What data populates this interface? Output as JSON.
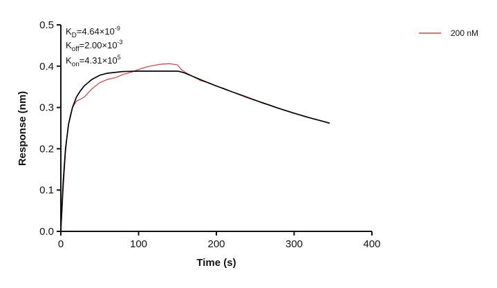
{
  "chart_data": {
    "type": "line",
    "title": "",
    "xlabel": "Time (s)",
    "ylabel": "Response (nm)",
    "xlim": [
      0,
      400
    ],
    "ylim": [
      0,
      0.5
    ],
    "x_ticks": [
      0,
      100,
      200,
      300,
      400
    ],
    "y_ticks": [
      0.0,
      0.1,
      0.2,
      0.3,
      0.4,
      0.5
    ],
    "x_tick_labels": [
      "0",
      "100",
      "200",
      "300",
      "400"
    ],
    "y_tick_labels": [
      "0.0",
      "0.1",
      "0.2",
      "0.3",
      "0.4",
      "0.5"
    ],
    "grid": false,
    "legend_position": "top-right",
    "annotations": {
      "kd": {
        "base": "K",
        "sub": "D",
        "value": "=4.64×10",
        "exp": "-9"
      },
      "koff": {
        "base": "K",
        "sub": "off",
        "value": "=2.00×10",
        "exp": "-3"
      },
      "kon": {
        "base": "K",
        "sub": "on",
        "value": "=4.31×10",
        "exp": "5"
      }
    },
    "series": [
      {
        "name": "200 nM",
        "color": "#d94a4a",
        "role": "measured",
        "x": [
          0,
          3,
          6,
          9,
          12,
          15,
          20,
          25,
          30,
          40,
          50,
          60,
          70,
          80,
          90,
          100,
          110,
          120,
          130,
          140,
          150,
          155,
          160,
          170,
          180,
          190,
          200,
          210,
          220,
          230,
          240,
          250,
          260,
          270,
          280,
          290,
          300,
          310,
          320,
          330,
          340,
          345
        ],
        "y": [
          0.0,
          0.1,
          0.19,
          0.25,
          0.28,
          0.3,
          0.315,
          0.32,
          0.325,
          0.345,
          0.36,
          0.368,
          0.372,
          0.38,
          0.385,
          0.392,
          0.398,
          0.402,
          0.405,
          0.406,
          0.403,
          0.392,
          0.385,
          0.375,
          0.365,
          0.36,
          0.352,
          0.346,
          0.338,
          0.332,
          0.325,
          0.318,
          0.31,
          0.305,
          0.298,
          0.292,
          0.286,
          0.28,
          0.275,
          0.27,
          0.265,
          0.263
        ]
      },
      {
        "name": "",
        "color": "#000000",
        "role": "fit",
        "x": [
          0,
          3,
          6,
          10,
          15,
          20,
          25,
          30,
          40,
          50,
          60,
          80,
          100,
          120,
          140,
          150,
          155,
          160,
          170,
          180,
          200,
          220,
          240,
          260,
          280,
          300,
          320,
          340,
          345
        ],
        "y": [
          0.0,
          0.12,
          0.2,
          0.26,
          0.3,
          0.325,
          0.34,
          0.352,
          0.368,
          0.378,
          0.383,
          0.387,
          0.388,
          0.388,
          0.388,
          0.388,
          0.386,
          0.383,
          0.375,
          0.367,
          0.352,
          0.338,
          0.324,
          0.311,
          0.298,
          0.286,
          0.275,
          0.265,
          0.262
        ]
      }
    ]
  }
}
